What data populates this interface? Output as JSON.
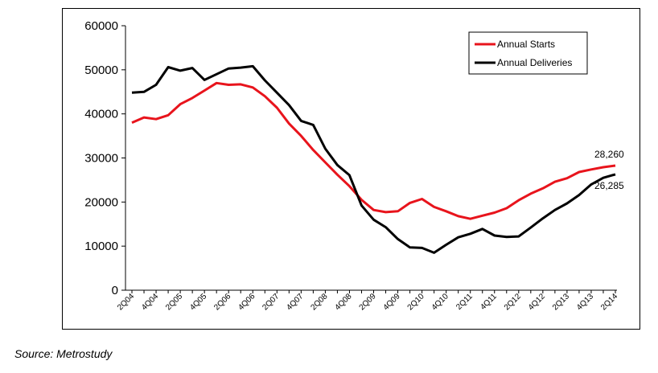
{
  "source_note": "Source: Metrostudy",
  "chart_data": {
    "type": "line",
    "title": "",
    "xlabel": "",
    "ylabel": "",
    "ylim": [
      0,
      60000
    ],
    "y_ticks": [
      "0",
      "10000",
      "20000",
      "30000",
      "40000",
      "50000",
      "60000"
    ],
    "x_tick_labels": [
      "2Q04",
      "4Q04",
      "2Q05",
      "4Q05",
      "2Q06",
      "4Q06",
      "2Q07",
      "4Q07",
      "2Q08",
      "4Q08",
      "2Q09",
      "4Q09",
      "2Q10",
      "4Q10",
      "2Q11",
      "4Q11",
      "2Q12",
      "4Q12",
      "2Q13",
      "4Q13",
      "2Q14"
    ],
    "x_quarters": [
      "2Q04",
      "3Q04",
      "4Q04",
      "1Q05",
      "2Q05",
      "3Q05",
      "4Q05",
      "1Q06",
      "2Q06",
      "3Q06",
      "4Q06",
      "1Q07",
      "2Q07",
      "3Q07",
      "4Q07",
      "1Q08",
      "2Q08",
      "3Q08",
      "4Q08",
      "1Q09",
      "2Q09",
      "3Q09",
      "4Q09",
      "1Q10",
      "2Q10",
      "3Q10",
      "4Q10",
      "1Q11",
      "2Q11",
      "3Q11",
      "4Q11",
      "1Q12",
      "2Q12",
      "3Q12",
      "4Q12",
      "1Q13",
      "2Q13",
      "3Q13",
      "4Q13",
      "1Q14",
      "2Q14"
    ],
    "grid": false,
    "legend_position": "top-right",
    "series": [
      {
        "name": "Annual Starts",
        "color": "#e8141c",
        "values": [
          38000,
          39200,
          38800,
          39700,
          42200,
          43600,
          45300,
          47000,
          46600,
          46700,
          46000,
          44000,
          41400,
          37800,
          35000,
          31800,
          29000,
          26200,
          23600,
          20500,
          18200,
          17700,
          17900,
          19800,
          20700,
          18900,
          17900,
          16800,
          16200,
          16900,
          17600,
          18600,
          20400,
          21900,
          23100,
          24600,
          25400,
          26800,
          27400,
          27900,
          28260
        ],
        "end_label": "28,260"
      },
      {
        "name": "Annual Deliveries",
        "color": "#000000",
        "values": [
          44800,
          45000,
          46600,
          50600,
          49800,
          50400,
          47700,
          49000,
          50300,
          50500,
          50800,
          47600,
          44800,
          42000,
          38400,
          37500,
          32100,
          28400,
          26100,
          19200,
          16000,
          14300,
          11600,
          9700,
          9600,
          8500,
          10300,
          12000,
          12800,
          13900,
          12400,
          12100,
          12200,
          14200,
          16300,
          18200,
          19700,
          21600,
          24000,
          25500,
          26285
        ],
        "end_label": "26,285"
      }
    ]
  }
}
